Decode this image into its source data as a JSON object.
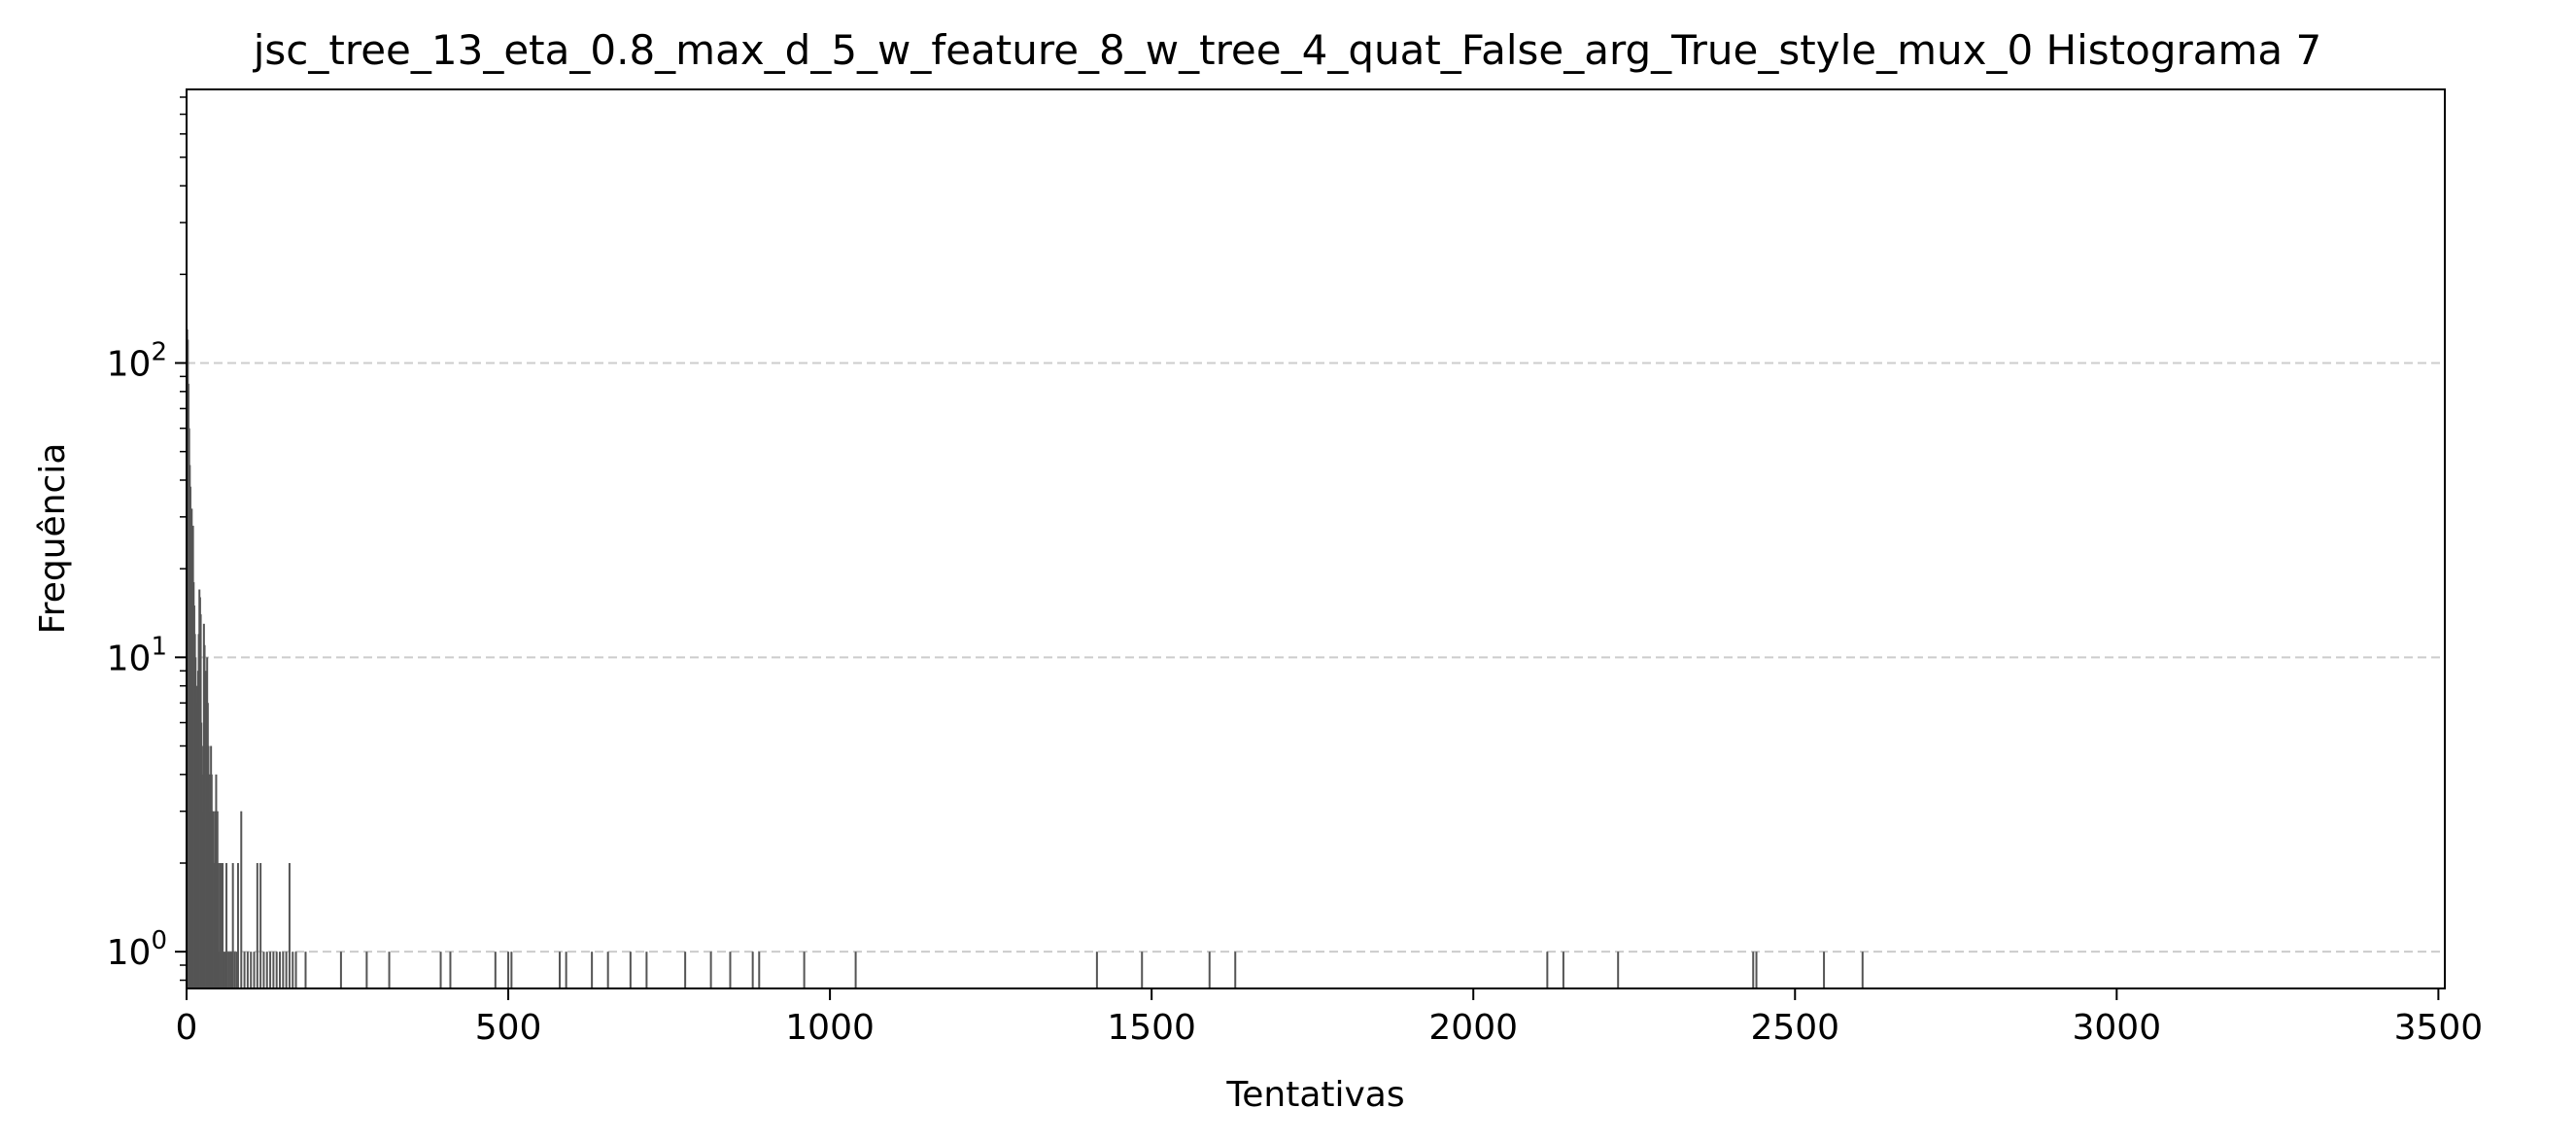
{
  "chart_data": {
    "type": "bar",
    "title": "jsc_tree_13_eta_0.8_max_d_5_w_feature_8_w_tree_4_quat_False_arg_True_style_mux_0 Histograma 7",
    "xlabel": "Tentativas",
    "ylabel": "Frequência",
    "xlim": [
      0,
      3510
    ],
    "ylim": [
      0.75,
      850
    ],
    "y_scale": "log",
    "grid": {
      "axis": "y",
      "style": "dashed",
      "color": "#cccccc"
    },
    "x_ticks": [
      {
        "value": 0,
        "label": "0"
      },
      {
        "value": 500,
        "label": "500"
      },
      {
        "value": 1000,
        "label": "1000"
      },
      {
        "value": 1500,
        "label": "1500"
      },
      {
        "value": 2000,
        "label": "2000"
      },
      {
        "value": 2500,
        "label": "2500"
      },
      {
        "value": 3000,
        "label": "3000"
      },
      {
        "value": 3500,
        "label": "3500"
      }
    ],
    "y_ticks": [
      {
        "value": 1,
        "base": "10",
        "exp": "0"
      },
      {
        "value": 10,
        "base": "10",
        "exp": "1"
      },
      {
        "value": 100,
        "base": "10",
        "exp": "2"
      }
    ],
    "bar_color": "#555555",
    "series": [
      {
        "x": [
          1,
          2,
          3,
          4,
          5,
          6,
          7,
          8,
          9,
          10,
          11,
          12,
          13,
          14,
          15,
          16,
          17,
          18,
          19,
          20,
          21,
          22,
          23,
          24,
          25,
          26,
          27,
          28,
          29,
          30,
          31,
          32,
          33,
          34,
          35,
          36,
          37,
          38,
          39,
          40,
          41,
          42,
          43,
          44,
          45,
          46,
          47,
          48,
          49,
          50,
          52,
          54,
          56,
          58,
          60,
          62,
          65,
          68,
          70,
          72,
          75,
          78,
          80,
          85,
          90,
          95,
          100,
          105,
          110,
          115,
          120,
          125,
          130,
          135,
          140,
          145,
          150,
          155,
          160,
          165,
          170,
          185,
          240,
          280,
          315,
          395,
          410,
          480,
          500,
          505,
          580,
          590,
          630,
          655,
          690,
          715,
          775,
          815,
          845,
          880,
          890,
          960,
          1040,
          1415,
          1485,
          1590,
          1630,
          2115,
          2140,
          2225,
          2435,
          2440,
          2545,
          2605
        ],
        "values": [
          130,
          120,
          85,
          60,
          45,
          38,
          30,
          32,
          24,
          28,
          18,
          15,
          12,
          10,
          6,
          8,
          7,
          9,
          12,
          17,
          16,
          14,
          6,
          5,
          4,
          3,
          13,
          11,
          8,
          9,
          6,
          10,
          7,
          5,
          4,
          4,
          3,
          5,
          4,
          3,
          2,
          3,
          2,
          2,
          3,
          4,
          2,
          3,
          2,
          1,
          2,
          2,
          2,
          1,
          1,
          2,
          1,
          1,
          1,
          2,
          1,
          1,
          2,
          3,
          1,
          1,
          1,
          1,
          2,
          2,
          1,
          1,
          1,
          1,
          1,
          1,
          1,
          1,
          2,
          1,
          1,
          1,
          1,
          1,
          1,
          1,
          1,
          1,
          1,
          1,
          1,
          1,
          1,
          1,
          1,
          1,
          1,
          1,
          1,
          1,
          1,
          1,
          1,
          1,
          1,
          1,
          1,
          1,
          1,
          1,
          1,
          1,
          1,
          1
        ]
      }
    ]
  }
}
